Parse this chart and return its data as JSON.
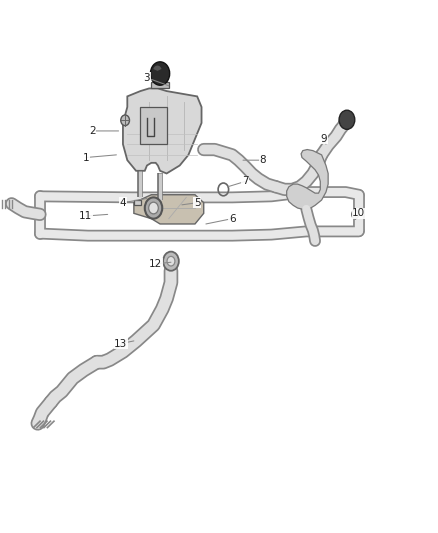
{
  "background_color": "#ffffff",
  "line_color": "#555555",
  "label_color": "#333333",
  "figure_width": 4.38,
  "figure_height": 5.33,
  "dpi": 100,
  "tube_fill": "#e8e8e8",
  "tube_edge": "#777777",
  "part_fill": "#d0d0d0",
  "part_edge": "#555555",
  "label_positions": {
    "3": [
      0.335,
      0.855,
      0.385,
      0.84
    ],
    "2": [
      0.21,
      0.755,
      0.27,
      0.755
    ],
    "1": [
      0.195,
      0.705,
      0.265,
      0.71
    ],
    "4": [
      0.28,
      0.62,
      0.335,
      0.628
    ],
    "5": [
      0.45,
      0.62,
      0.415,
      0.616
    ],
    "6": [
      0.53,
      0.59,
      0.47,
      0.58
    ],
    "7": [
      0.56,
      0.66,
      0.52,
      0.65
    ],
    "8": [
      0.6,
      0.7,
      0.555,
      0.7
    ],
    "9": [
      0.74,
      0.74,
      0.745,
      0.73
    ],
    "10": [
      0.82,
      0.6,
      0.81,
      0.595
    ],
    "11": [
      0.195,
      0.595,
      0.245,
      0.598
    ],
    "12": [
      0.355,
      0.505,
      0.39,
      0.508
    ],
    "13": [
      0.275,
      0.355,
      0.305,
      0.36
    ]
  }
}
